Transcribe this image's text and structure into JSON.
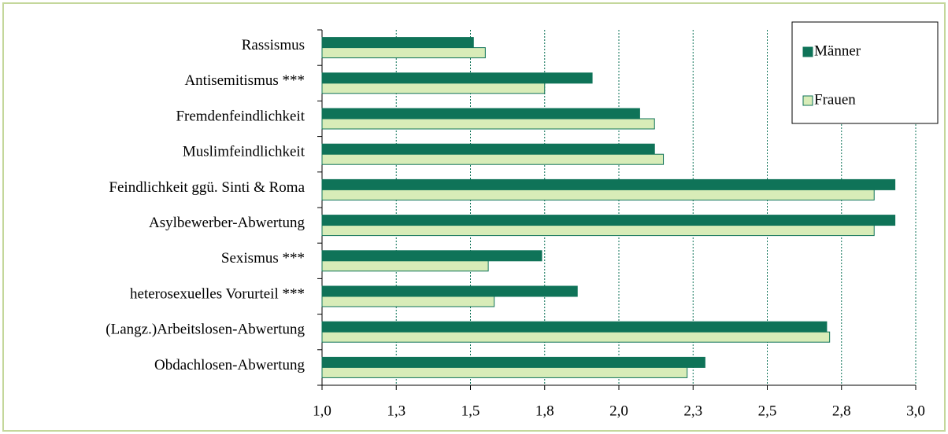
{
  "chart_data": {
    "type": "barh",
    "categories": [
      "Rassismus",
      "Antisemitismus ***",
      "Fremdenfeindlichkeit",
      "Muslimfeindlichkeit",
      "Feindlichkeit ggü. Sinti & Roma",
      "Asylbewerber-Abwertung",
      "Sexismus ***",
      "heterosexuelles Vorurteil ***",
      "(Langz.)Arbeitslosen-Abwertung",
      "Obdachlosen-Abwertung"
    ],
    "series": [
      {
        "name": "Männer",
        "color": "#0f7358",
        "values": [
          1.51,
          1.91,
          2.07,
          2.12,
          2.93,
          2.93,
          1.74,
          1.86,
          2.7,
          2.29
        ]
      },
      {
        "name": "Frauen",
        "color": "#d8ecb8",
        "values": [
          1.55,
          1.75,
          2.12,
          2.15,
          2.86,
          2.86,
          1.56,
          1.58,
          2.71,
          2.23
        ]
      }
    ],
    "xlim": [
      1.0,
      3.0
    ],
    "xticks": [
      {
        "value": 1.0,
        "label": "1,0"
      },
      {
        "value": 1.25,
        "label": "1,3"
      },
      {
        "value": 1.5,
        "label": "1,5"
      },
      {
        "value": 1.75,
        "label": "1,8"
      },
      {
        "value": 2.0,
        "label": "2,0"
      },
      {
        "value": 2.25,
        "label": "2,3"
      },
      {
        "value": 2.5,
        "label": "2,5"
      },
      {
        "value": 2.75,
        "label": "2,8"
      },
      {
        "value": 3.0,
        "label": "3,0"
      }
    ],
    "grid": true,
    "legend": "upper right"
  }
}
